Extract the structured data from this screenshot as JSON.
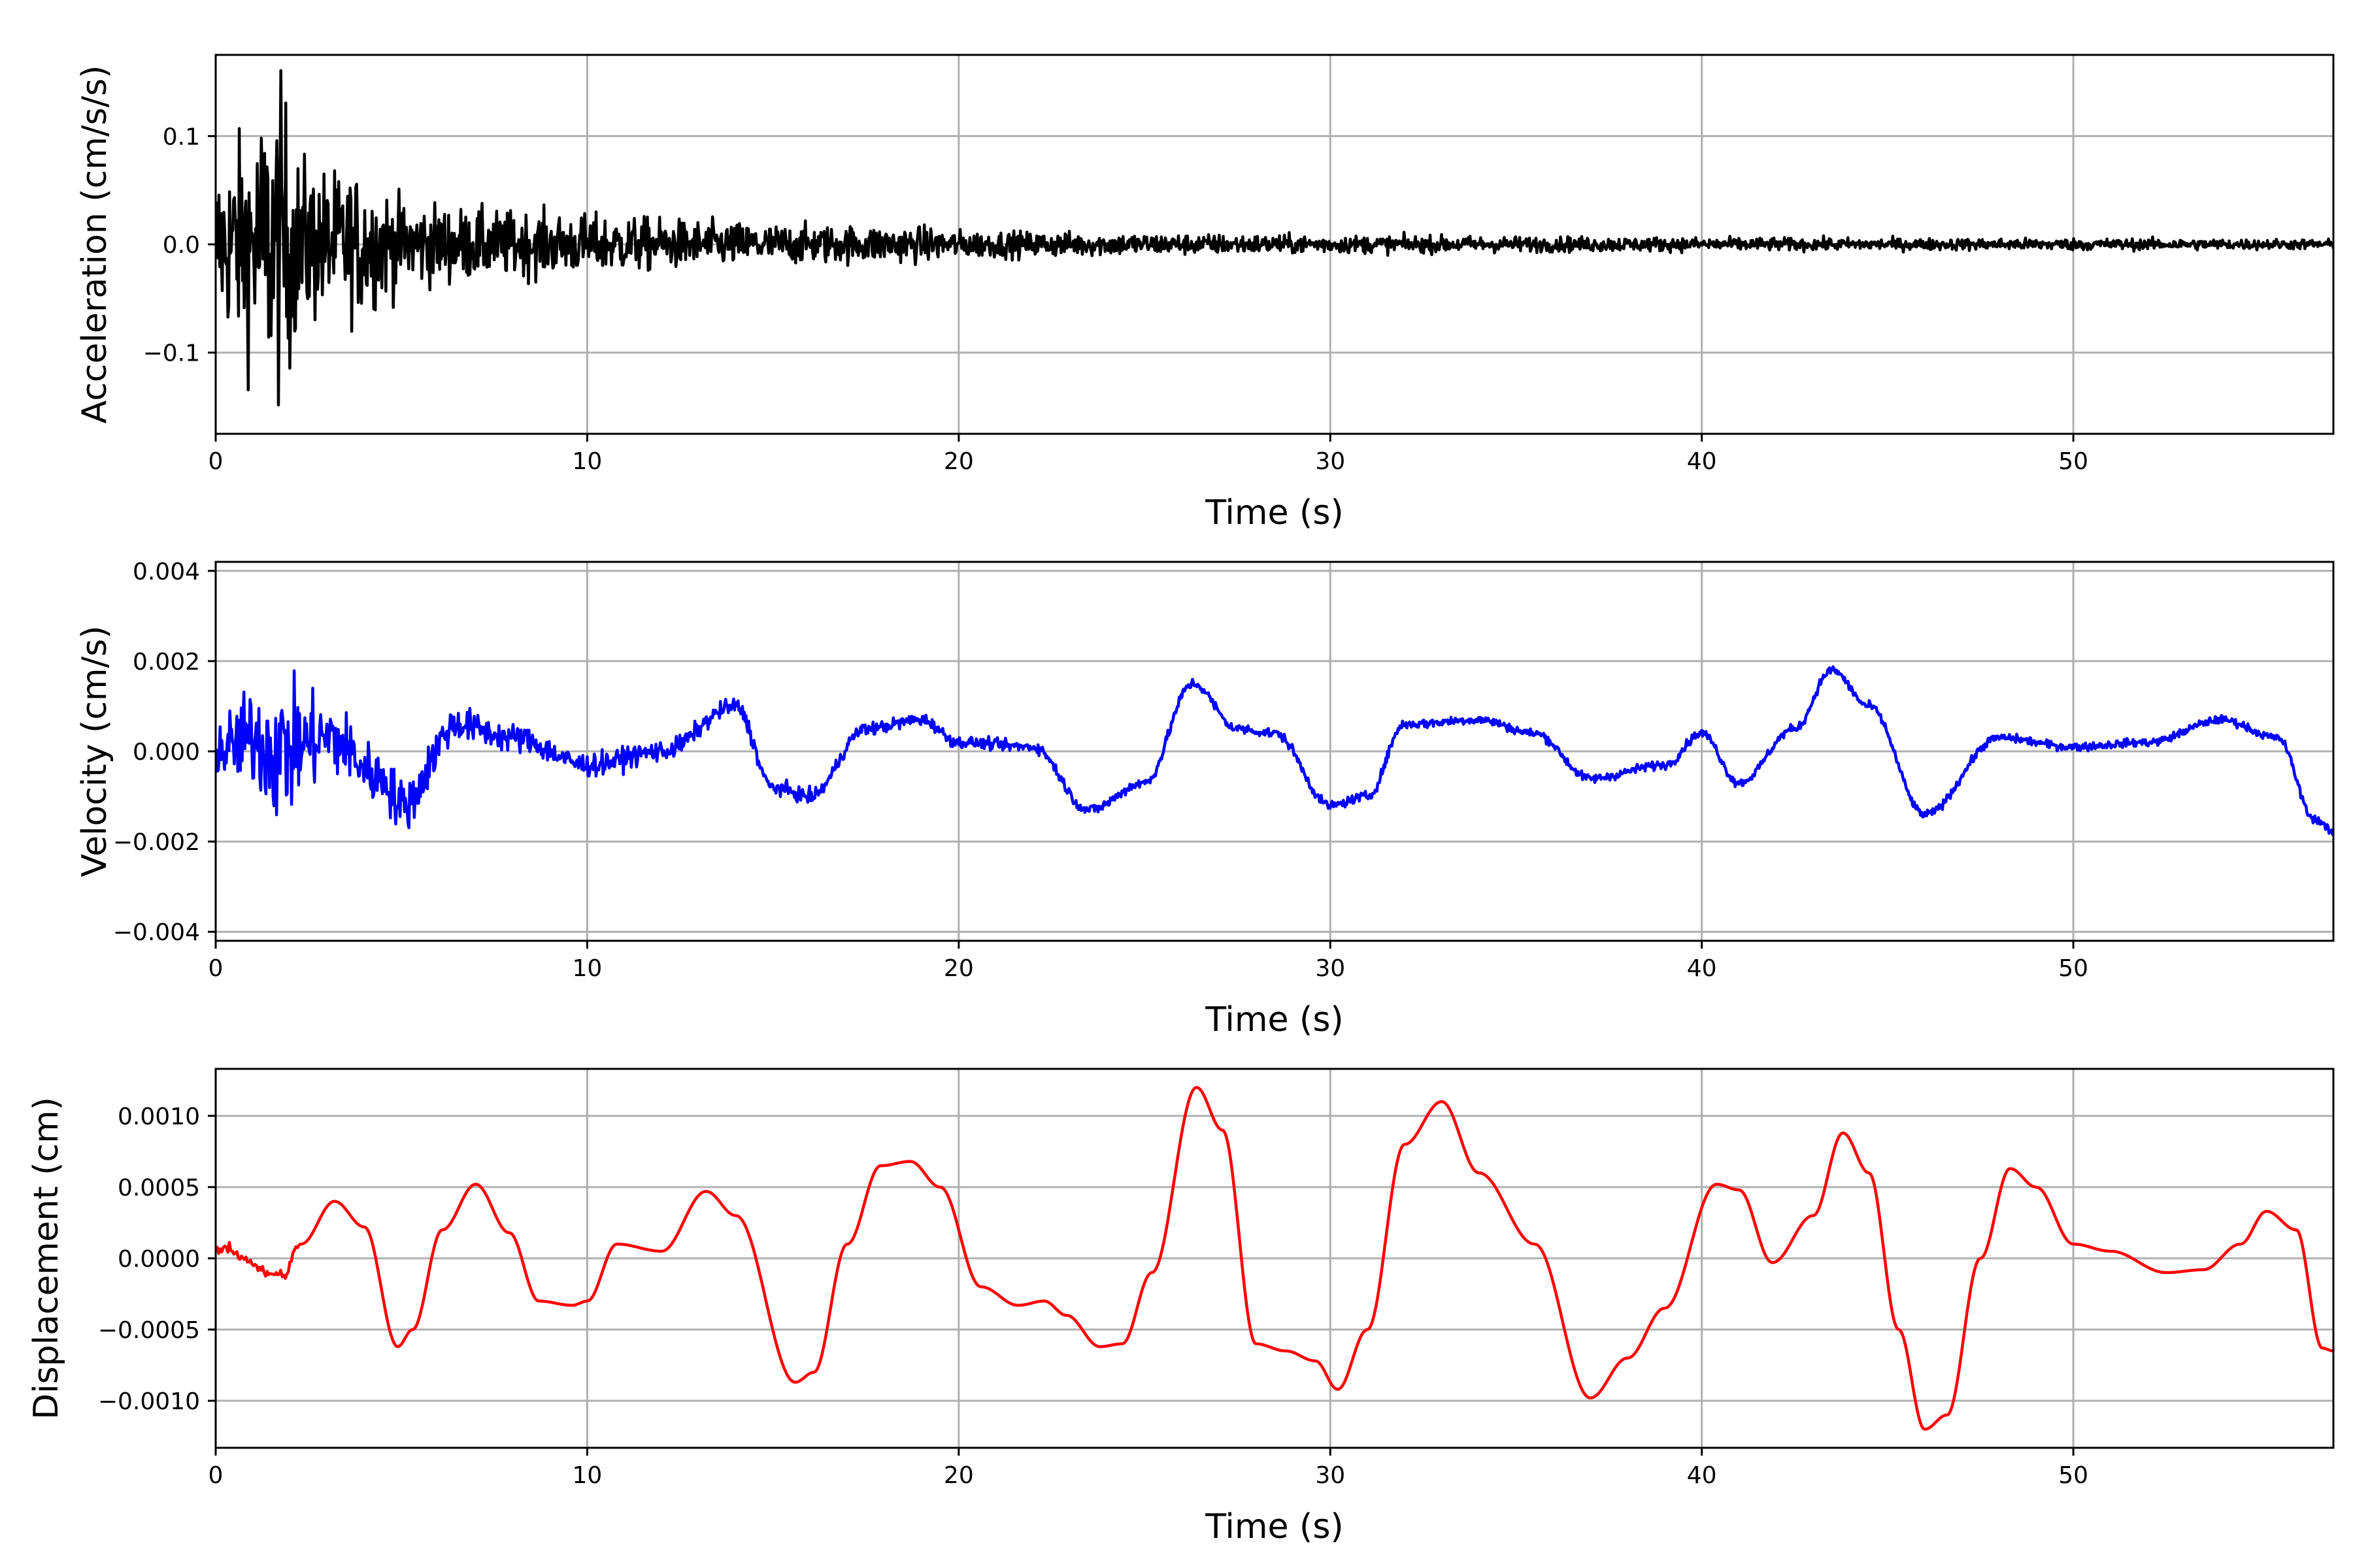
{
  "chart_data": [
    {
      "type": "line",
      "xlabel": "Time (s)",
      "ylabel": "Acceleration (cm/s/s)",
      "xlim": [
        0,
        57
      ],
      "ylim": [
        -0.175,
        0.175
      ],
      "xticks": [
        0,
        10,
        20,
        30,
        40,
        50
      ],
      "xtick_labels": [
        "0",
        "10",
        "20",
        "30",
        "40",
        "50"
      ],
      "yticks": [
        -0.1,
        0.0,
        0.1
      ],
      "ytick_labels": [
        "−0.1",
        "0.0",
        "0.1"
      ],
      "grid": true,
      "series": [
        {
          "color": "#000000",
          "envelope": {
            "t": [
              0,
              0.5,
              1,
              1.5,
              1.8,
              2.2,
              3,
              4,
              5,
              7,
              10,
              15,
              19,
              20,
              25,
              30,
              35,
              40,
              45,
              50,
              57
            ],
            "amplitude": [
              0.08,
              0.1,
              0.12,
              0.15,
              0.16,
              0.09,
              0.075,
              0.07,
              0.045,
              0.035,
              0.03,
              0.02,
              0.018,
              0.014,
              0.011,
              0.009,
              0.008,
              0.007,
              0.006,
              0.006,
              0.005
            ]
          }
        }
      ]
    },
    {
      "type": "line",
      "xlabel": "Time (s)",
      "ylabel": "Velocity (cm/s)",
      "xlim": [
        0,
        57
      ],
      "ylim": [
        -0.0042,
        0.0042
      ],
      "xticks": [
        0,
        10,
        20,
        30,
        40,
        50
      ],
      "xtick_labels": [
        "0",
        "10",
        "20",
        "30",
        "40",
        "50"
      ],
      "yticks": [
        -0.004,
        -0.002,
        0.0,
        0.002,
        0.004
      ],
      "ytick_labels": [
        "−0.004",
        "−0.002",
        "0.000",
        "0.002",
        "0.004"
      ],
      "grid": true,
      "series": [
        {
          "color": "#0000ff",
          "t": [
            0,
            1,
            1.7,
            3,
            4.5,
            5,
            6.5,
            8,
            10,
            12,
            14,
            15,
            16,
            17.5,
            19,
            20,
            22,
            23.5,
            25,
            26.3,
            27.5,
            28.5,
            30,
            31,
            32,
            34,
            35.5,
            37,
            39,
            40,
            41,
            42.5,
            43.5,
            44.5,
            46,
            48,
            50,
            52,
            54,
            55.5,
            56.5,
            57
          ],
          "v": [
            0.0,
            0.0003,
            0.0,
            0.0003,
            -0.0006,
            -0.0012,
            0.0006,
            0.0003,
            -0.0003,
            0.0,
            0.001,
            -0.0008,
            -0.001,
            0.0005,
            0.0007,
            0.0002,
            0.0001,
            -0.0013,
            -0.0007,
            0.0015,
            0.0005,
            0.0004,
            -0.0012,
            -0.001,
            0.0006,
            0.0007,
            0.0004,
            -0.0006,
            -0.0003,
            0.0004,
            -0.0007,
            0.0005,
            0.0018,
            0.001,
            -0.0014,
            0.0003,
            0.0001,
            0.0002,
            0.0007,
            0.0003,
            -0.0015,
            -0.0018
          ],
          "noise": {
            "t": [
              0,
              1,
              1.7,
              2.5,
              4,
              5,
              7,
              10,
              15,
              20,
              30,
              40,
              57
            ],
            "amplitude": [
              0.0008,
              0.0015,
              0.0022,
              0.0014,
              0.0009,
              0.0008,
              0.00045,
              0.00035,
              0.00022,
              0.00017,
              0.00014,
              0.00013,
              0.00012
            ]
          }
        }
      ]
    },
    {
      "type": "line",
      "xlabel": "Time (s)",
      "ylabel": "Displacement (cm)",
      "xlim": [
        0,
        57
      ],
      "ylim": [
        -0.00133,
        0.00133
      ],
      "xticks": [
        0,
        10,
        20,
        30,
        40,
        50
      ],
      "xtick_labels": [
        "0",
        "10",
        "20",
        "30",
        "40",
        "50"
      ],
      "yticks": [
        -0.001,
        -0.0005,
        0.0,
        0.0005,
        0.001
      ],
      "ytick_labels": [
        "−0.0010",
        "−0.0005",
        "0.0000",
        "0.0005",
        "0.0010"
      ],
      "grid": true,
      "series": [
        {
          "color": "#ff0000",
          "t": [
            0,
            0.3,
            0.8,
            1.3,
            1.8,
            2.3,
            3.2,
            4,
            4.9,
            5.3,
            6.1,
            7,
            7.9,
            8.7,
            9.6,
            10,
            10.8,
            12,
            13.2,
            14,
            15.6,
            16.1,
            17,
            17.9,
            18.7,
            19.5,
            20.6,
            21.6,
            22.3,
            22.9,
            23.8,
            24.4,
            25.2,
            26.4,
            27.1,
            28,
            28.8,
            29.6,
            30.2,
            31,
            32,
            33,
            34,
            35.5,
            37,
            38,
            39,
            40.4,
            41,
            41.9,
            43,
            43.8,
            44.5,
            45.3,
            46,
            46.6,
            47.5,
            48.3,
            49,
            50,
            51,
            52.5,
            53.5,
            54.5,
            55.2,
            56,
            56.7,
            57
          ],
          "d": [
            5e-05,
            8e-05,
            0.0,
            -0.0001,
            -0.00012,
            0.0001,
            0.0004,
            0.00022,
            -0.00062,
            -0.0005,
            0.0002,
            0.00052,
            0.00018,
            -0.0003,
            -0.00033,
            -0.0003,
            0.0001,
            5e-05,
            0.00047,
            0.0003,
            -0.00087,
            -0.0008,
            0.0001,
            0.00065,
            0.00068,
            0.0005,
            -0.0002,
            -0.00033,
            -0.0003,
            -0.0004,
            -0.00062,
            -0.0006,
            -0.0001,
            0.0012,
            0.0009,
            -0.0006,
            -0.00065,
            -0.00072,
            -0.00092,
            -0.0005,
            0.0008,
            0.0011,
            0.0006,
            0.0001,
            -0.00098,
            -0.0007,
            -0.00035,
            0.00052,
            0.00048,
            -3e-05,
            0.0003,
            0.00088,
            0.0006,
            -0.0005,
            -0.0012,
            -0.0011,
            0.0,
            0.00063,
            0.0005,
            0.0001,
            5e-05,
            -0.0001,
            -8e-05,
            0.0001,
            0.00033,
            0.0002,
            -0.00063,
            -0.00065
          ]
        }
      ]
    }
  ]
}
